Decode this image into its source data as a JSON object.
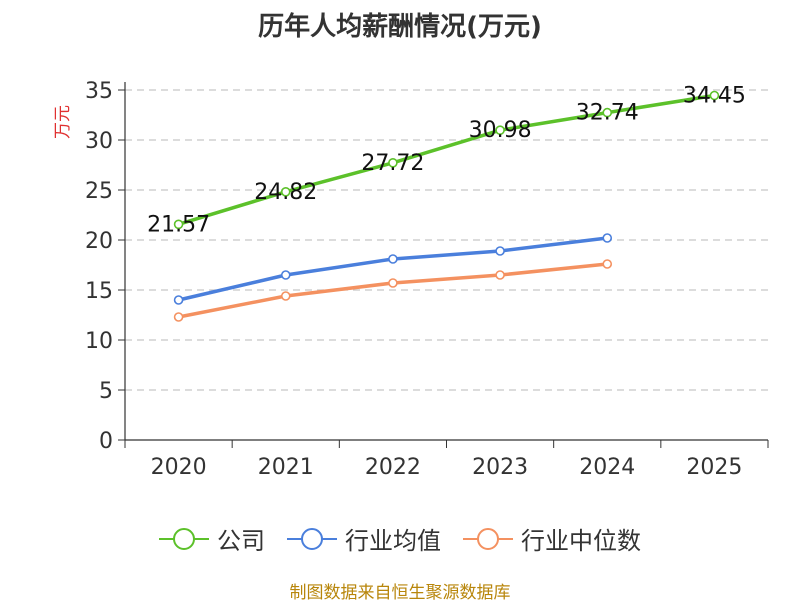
{
  "title": "历年人均薪酬情况(万元)",
  "source": "制图数据来自恒生聚源数据库",
  "chart_data": {
    "type": "line",
    "title": "历年人均薪酬情况(万元)",
    "ylabel": "万元",
    "ylabel_color": "#e03030",
    "xlabel": "",
    "categories": [
      "2020",
      "2021",
      "2022",
      "2023",
      "2024",
      "2025"
    ],
    "yticks": [
      0,
      5,
      10,
      15,
      20,
      25,
      30,
      35
    ],
    "ylim": [
      0,
      35
    ],
    "grid": true,
    "legend_position": "bottom",
    "series": [
      {
        "name": "公司",
        "color": "#5cc12a",
        "values": [
          21.57,
          24.82,
          27.72,
          30.98,
          32.74,
          34.45
        ],
        "labels": [
          "21.57",
          "24.82",
          "27.72",
          "30.98",
          "32.74",
          "34.45"
        ],
        "show_labels": true
      },
      {
        "name": "行业均值",
        "color": "#4a7fdc",
        "values": [
          14.0,
          16.5,
          18.1,
          18.9,
          20.2,
          null
        ],
        "show_labels": false
      },
      {
        "name": "行业中位数",
        "color": "#f49160",
        "values": [
          12.3,
          14.4,
          15.7,
          16.5,
          17.6,
          null
        ],
        "show_labels": false
      }
    ]
  }
}
